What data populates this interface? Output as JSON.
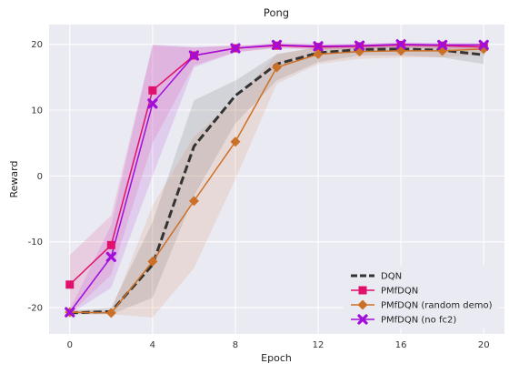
{
  "chart_data": {
    "type": "line",
    "title": "Pong",
    "xlabel": "Epoch",
    "ylabel": "Reward",
    "xlim": [
      -1,
      21
    ],
    "ylim": [
      -24,
      23
    ],
    "xticks": [
      0,
      4,
      8,
      12,
      16,
      20
    ],
    "yticks": [
      -20,
      -10,
      0,
      10,
      20
    ],
    "grid": true,
    "background": "#eaeaf2",
    "legend_position": "bottom-right",
    "series": [
      {
        "name": "DQN",
        "color": "#333333",
        "dash": true,
        "marker": "none",
        "x": [
          0,
          2,
          4,
          6,
          8,
          10,
          12,
          14,
          16,
          18,
          20
        ],
        "y": [
          -20.8,
          -20.6,
          -13.5,
          4.5,
          12.2,
          17.0,
          18.7,
          19.2,
          19.3,
          19.1,
          18.4
        ],
        "band_low": [
          -21,
          -21,
          -18.5,
          -3,
          8,
          14.5,
          17.3,
          18.3,
          18.3,
          18.0,
          17.0
        ],
        "band_high": [
          -20.5,
          -20.0,
          -7,
          11.5,
          14.5,
          18.5,
          19.6,
          19.8,
          20.0,
          19.9,
          19.5
        ]
      },
      {
        "name": "PMfDQN",
        "color": "#e0106b",
        "dash": false,
        "marker": "square",
        "x": [
          0,
          2,
          4,
          6,
          8,
          10,
          12,
          14,
          16,
          18,
          20
        ],
        "y": [
          -16.5,
          -10.5,
          13.0,
          18.3,
          19.4,
          19.8,
          19.6,
          19.7,
          19.9,
          19.8,
          19.6
        ],
        "band_low": [
          -21,
          -15,
          5,
          16.8,
          18.8,
          19.4,
          19.2,
          19.3,
          19.5,
          19.4,
          19.1
        ],
        "band_high": [
          -12,
          -6,
          19.8,
          19.5,
          19.8,
          20.2,
          20.0,
          20.1,
          20.2,
          20.1,
          20.1
        ]
      },
      {
        "name": "PMfDQN (random demo)",
        "color": "#cd7027",
        "dash": false,
        "marker": "diamond",
        "x": [
          0,
          2,
          4,
          6,
          8,
          10,
          12,
          14,
          16,
          18,
          20
        ],
        "y": [
          -20.7,
          -20.8,
          -13.0,
          -3.8,
          5.2,
          16.5,
          18.5,
          18.9,
          19.0,
          19.0,
          19.3
        ],
        "band_low": [
          -21,
          -21,
          -21.5,
          -14,
          -0.5,
          14,
          17.0,
          17.8,
          18.0,
          18.0,
          18.5
        ],
        "band_high": [
          -20.3,
          -20.5,
          -4.5,
          6,
          11.5,
          18.5,
          19.5,
          19.7,
          19.8,
          19.8,
          19.9
        ]
      },
      {
        "name": "PMfDQN (no fc2)",
        "color": "#a10edc",
        "dash": false,
        "marker": "x",
        "x": [
          0,
          2,
          4,
          6,
          8,
          10,
          12,
          14,
          16,
          18,
          20
        ],
        "y": [
          -20.7,
          -12.3,
          11.0,
          18.3,
          19.4,
          19.9,
          19.7,
          19.8,
          20.0,
          19.9,
          19.9
        ],
        "band_low": [
          -21,
          -17,
          0,
          16.5,
          18.8,
          19.5,
          19.3,
          19.4,
          19.6,
          19.5,
          19.5
        ],
        "band_high": [
          -20.3,
          -7.5,
          20.0,
          19.6,
          19.8,
          20.2,
          20.1,
          20.1,
          20.3,
          20.2,
          20.2
        ]
      }
    ]
  }
}
